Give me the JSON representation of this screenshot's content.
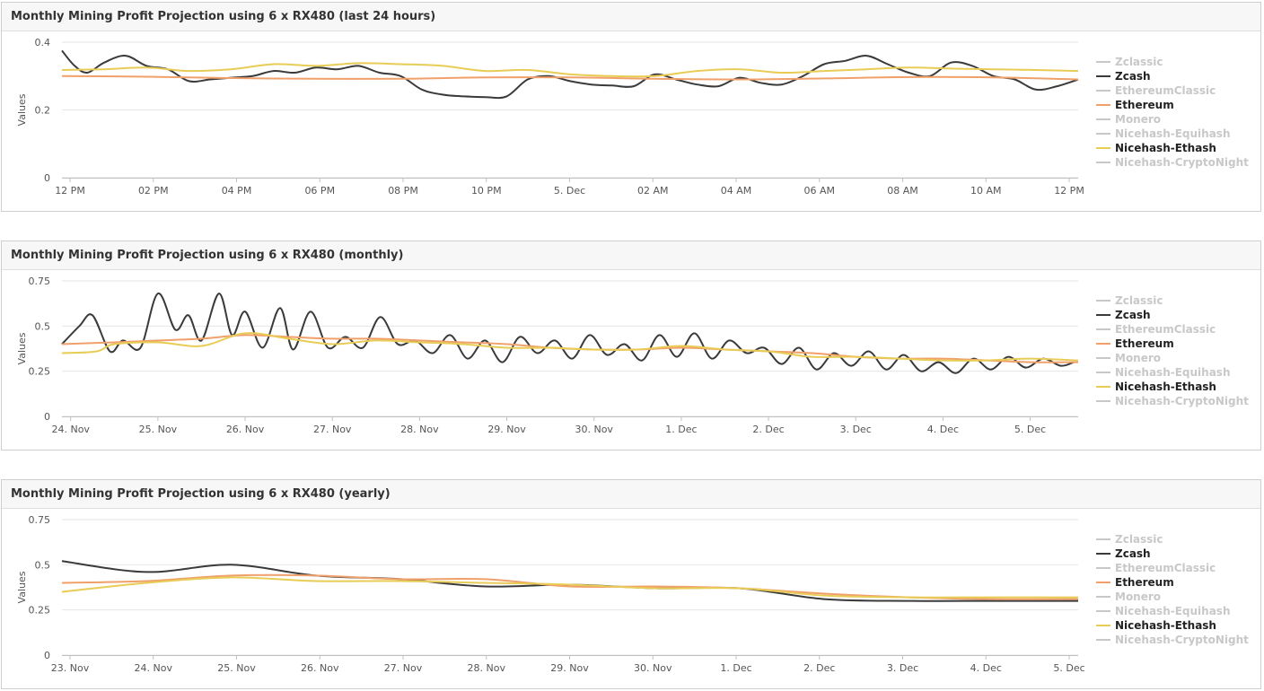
{
  "legend_names": [
    "Zclassic",
    "Zcash",
    "EthereumClassic",
    "Ethereum",
    "Monero",
    "Nicehash-Equihash",
    "Nicehash-Ethash",
    "Nicehash-CryptoNight"
  ],
  "legend_visible": [
    false,
    true,
    false,
    true,
    false,
    false,
    true,
    false
  ],
  "colors": {
    "Zcash": "#3a3a3a",
    "Ethereum": "#f0a06a",
    "Nicehash-Ethash": "#e8cc55",
    "hidden": "#c8c8c8",
    "grid": "#e6e6e6",
    "axis_text": "#555555"
  },
  "chart_data": [
    {
      "type": "line",
      "title": "Monthly Mining Profit Projection using 6 x RX480 (last 24 hours)",
      "ylabel": "Values",
      "ylim": [
        0,
        0.4
      ],
      "yticks": [
        "0",
        "0.2",
        "0.4"
      ],
      "xticks": [
        "12 PM",
        "02 PM",
        "04 PM",
        "06 PM",
        "08 PM",
        "10 PM",
        "5. Dec",
        "02 AM",
        "04 AM",
        "06 AM",
        "08 AM",
        "10 AM",
        "12 PM"
      ],
      "x_range": [
        0,
        24
      ],
      "grid": true,
      "legend_position": "right",
      "series": [
        {
          "name": "Zcash",
          "x": [
            0,
            0.3,
            0.6,
            1,
            1.5,
            2,
            2.5,
            3,
            3.5,
            4,
            4.5,
            5,
            5.5,
            6,
            6.5,
            7,
            7.5,
            8,
            8.5,
            9,
            9.5,
            10,
            10.5,
            11,
            11.5,
            12,
            12.5,
            13,
            13.5,
            14,
            14.5,
            15,
            15.5,
            16,
            16.5,
            17,
            17.5,
            18,
            18.5,
            19,
            19.5,
            20,
            20.5,
            21,
            21.5,
            22,
            22.5,
            23,
            23.5,
            24
          ],
          "y": [
            0.375,
            0.33,
            0.31,
            0.34,
            0.36,
            0.33,
            0.32,
            0.285,
            0.29,
            0.295,
            0.3,
            0.315,
            0.31,
            0.325,
            0.32,
            0.33,
            0.31,
            0.3,
            0.26,
            0.245,
            0.24,
            0.238,
            0.24,
            0.29,
            0.3,
            0.285,
            0.275,
            0.272,
            0.27,
            0.305,
            0.29,
            0.275,
            0.27,
            0.295,
            0.28,
            0.275,
            0.3,
            0.335,
            0.345,
            0.36,
            0.335,
            0.31,
            0.3,
            0.34,
            0.33,
            0.3,
            0.29,
            0.26,
            0.27,
            0.29
          ]
        },
        {
          "name": "Ethereum",
          "x": [
            0,
            2,
            4,
            6,
            8,
            10,
            12,
            14,
            16,
            18,
            20,
            22,
            24
          ],
          "y": [
            0.3,
            0.298,
            0.294,
            0.292,
            0.292,
            0.296,
            0.296,
            0.292,
            0.29,
            0.293,
            0.297,
            0.296,
            0.29
          ]
        },
        {
          "name": "Nicehash-Ethash",
          "x": [
            0,
            1,
            2,
            3,
            4,
            5,
            6,
            7,
            8,
            9,
            10,
            11,
            12,
            13,
            14,
            15,
            16,
            17,
            18,
            19,
            20,
            21,
            22,
            23,
            24
          ],
          "y": [
            0.318,
            0.32,
            0.325,
            0.315,
            0.32,
            0.335,
            0.33,
            0.338,
            0.335,
            0.33,
            0.315,
            0.318,
            0.305,
            0.3,
            0.3,
            0.315,
            0.32,
            0.31,
            0.315,
            0.32,
            0.325,
            0.322,
            0.32,
            0.318,
            0.315
          ]
        }
      ]
    },
    {
      "type": "line",
      "title": "Monthly Mining Profit Projection using 6 x RX480 (monthly)",
      "ylabel": "Values",
      "ylim": [
        0,
        0.75
      ],
      "yticks": [
        "0",
        "0.25",
        "0.5",
        "0.75"
      ],
      "xticks": [
        "24. Nov",
        "25. Nov",
        "26. Nov",
        "27. Nov",
        "28. Nov",
        "29. Nov",
        "30. Nov",
        "1. Dec",
        "2. Dec",
        "3. Dec",
        "4. Dec",
        "5. Dec"
      ],
      "x_range": [
        -0.1,
        11.55
      ],
      "grid": true,
      "legend_position": "right",
      "series": [
        {
          "name": "Zcash",
          "x": [
            -0.1,
            0.1,
            0.25,
            0.45,
            0.6,
            0.8,
            1,
            1.2,
            1.35,
            1.5,
            1.7,
            1.85,
            2,
            2.2,
            2.4,
            2.55,
            2.75,
            2.95,
            3.15,
            3.35,
            3.55,
            3.75,
            3.95,
            4.15,
            4.35,
            4.55,
            4.75,
            4.95,
            5.15,
            5.35,
            5.55,
            5.75,
            5.95,
            6.15,
            6.35,
            6.55,
            6.75,
            6.95,
            7.15,
            7.35,
            7.55,
            7.75,
            7.95,
            8.15,
            8.35,
            8.55,
            8.75,
            8.95,
            9.15,
            9.35,
            9.55,
            9.75,
            9.95,
            10.15,
            10.35,
            10.55,
            10.75,
            10.95,
            11.15,
            11.35,
            11.5
          ],
          "y": [
            0.4,
            0.5,
            0.56,
            0.36,
            0.42,
            0.38,
            0.68,
            0.48,
            0.56,
            0.42,
            0.68,
            0.45,
            0.58,
            0.38,
            0.6,
            0.37,
            0.58,
            0.38,
            0.44,
            0.38,
            0.55,
            0.4,
            0.42,
            0.35,
            0.45,
            0.32,
            0.42,
            0.3,
            0.44,
            0.35,
            0.42,
            0.32,
            0.45,
            0.34,
            0.4,
            0.31,
            0.45,
            0.33,
            0.46,
            0.32,
            0.42,
            0.35,
            0.38,
            0.29,
            0.38,
            0.26,
            0.35,
            0.28,
            0.36,
            0.26,
            0.34,
            0.25,
            0.3,
            0.24,
            0.32,
            0.26,
            0.33,
            0.27,
            0.32,
            0.28,
            0.3
          ]
        },
        {
          "name": "Ethereum",
          "x": [
            -0.1,
            0.5,
            1,
            1.5,
            2,
            2.5,
            3,
            3.5,
            4,
            4.5,
            5,
            5.5,
            6,
            6.5,
            7,
            7.5,
            8,
            8.5,
            9,
            9.5,
            10,
            10.5,
            11,
            11.55
          ],
          "y": [
            0.4,
            0.41,
            0.42,
            0.43,
            0.45,
            0.44,
            0.43,
            0.43,
            0.42,
            0.41,
            0.4,
            0.38,
            0.37,
            0.37,
            0.38,
            0.37,
            0.36,
            0.35,
            0.33,
            0.32,
            0.32,
            0.31,
            0.3,
            0.3
          ]
        },
        {
          "name": "Nicehash-Ethash",
          "x": [
            -0.1,
            0.3,
            0.5,
            1,
            1.5,
            2,
            2.5,
            3,
            3.5,
            4,
            4.5,
            5,
            5.5,
            6,
            6.5,
            7,
            7.5,
            8,
            8.5,
            9,
            9.5,
            10,
            10.5,
            11,
            11.55
          ],
          "y": [
            0.35,
            0.36,
            0.4,
            0.41,
            0.39,
            0.46,
            0.43,
            0.4,
            0.42,
            0.41,
            0.4,
            0.38,
            0.38,
            0.37,
            0.37,
            0.39,
            0.37,
            0.36,
            0.33,
            0.33,
            0.32,
            0.31,
            0.31,
            0.32,
            0.31
          ]
        }
      ]
    },
    {
      "type": "line",
      "title": "Monthly Mining Profit Projection using 6 x RX480 (yearly)",
      "ylabel": "Values",
      "ylim": [
        0,
        0.75
      ],
      "yticks": [
        "0",
        "0.25",
        "0.5",
        "0.75"
      ],
      "xticks": [
        "23. Nov",
        "24. Nov",
        "25. Nov",
        "26. Nov",
        "27. Nov",
        "28. Nov",
        "29. Nov",
        "30. Nov",
        "1. Dec",
        "2. Dec",
        "3. Dec",
        "4. Dec",
        "5. Dec"
      ],
      "x_range": [
        0,
        12
      ],
      "grid": true,
      "legend_position": "right",
      "series": [
        {
          "name": "Zcash",
          "x": [
            0,
            1,
            2,
            3,
            4,
            5,
            6,
            7,
            8,
            9,
            10,
            11,
            12
          ],
          "y": [
            0.52,
            0.46,
            0.5,
            0.44,
            0.42,
            0.38,
            0.39,
            0.37,
            0.37,
            0.31,
            0.3,
            0.3,
            0.3
          ]
        },
        {
          "name": "Ethereum",
          "x": [
            0,
            1,
            2,
            3,
            4,
            5,
            6,
            7,
            8,
            9,
            10,
            11,
            12
          ],
          "y": [
            0.4,
            0.41,
            0.44,
            0.44,
            0.42,
            0.42,
            0.38,
            0.38,
            0.37,
            0.34,
            0.32,
            0.31,
            0.31
          ]
        },
        {
          "name": "Nicehash-Ethash",
          "x": [
            0,
            1,
            2,
            3,
            4,
            5,
            6,
            7,
            8,
            9,
            10,
            11,
            12
          ],
          "y": [
            0.35,
            0.4,
            0.43,
            0.41,
            0.41,
            0.4,
            0.39,
            0.37,
            0.37,
            0.33,
            0.32,
            0.32,
            0.32
          ]
        }
      ]
    }
  ]
}
